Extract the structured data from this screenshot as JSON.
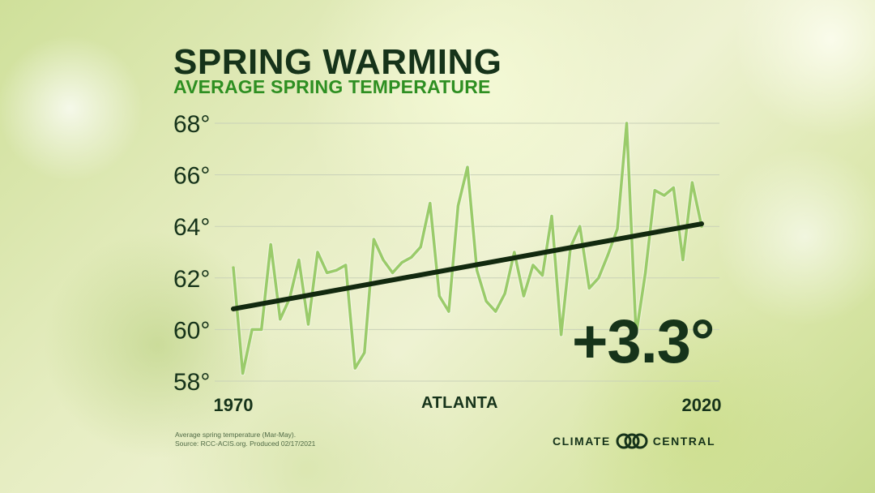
{
  "header": {
    "title": "SPRING WARMING",
    "subtitle": "AVERAGE SPRING TEMPERATURE"
  },
  "city": "ATLANTA",
  "annotation": "+3.3°",
  "footnote": {
    "line1": "Average spring temperature (Mar-May).",
    "line2": "Source: RCC-ACIS.org. Produced 02/17/2021"
  },
  "logo": {
    "left_text": "CLIMATE",
    "right_text": "CENTRAL",
    "icon": "climate-central-rings-icon"
  },
  "colors": {
    "title": "#16331a",
    "subtitle": "#2e8f22",
    "series": "#9acb6a",
    "trend": "#12290f",
    "grid": "#c9d1b8"
  },
  "chart_data": {
    "type": "line",
    "title": "SPRING WARMING",
    "subtitle": "AVERAGE SPRING TEMPERATURE",
    "xlabel": "",
    "ylabel": "",
    "ylim": [
      58,
      68
    ],
    "xlim": [
      1970,
      2020
    ],
    "yticks": [
      58,
      60,
      62,
      64,
      66,
      68
    ],
    "ytick_labels": [
      "58°",
      "60°",
      "62°",
      "64°",
      "66°",
      "68°"
    ],
    "xtick_labels": [
      "1970",
      "2020"
    ],
    "grid": true,
    "x": [
      1970,
      1971,
      1972,
      1973,
      1974,
      1975,
      1976,
      1977,
      1978,
      1979,
      1980,
      1981,
      1982,
      1983,
      1984,
      1985,
      1986,
      1987,
      1988,
      1989,
      1990,
      1991,
      1992,
      1993,
      1994,
      1995,
      1996,
      1997,
      1998,
      1999,
      2000,
      2001,
      2002,
      2003,
      2004,
      2005,
      2006,
      2007,
      2008,
      2009,
      2010,
      2011,
      2012,
      2013,
      2014,
      2015,
      2016,
      2017,
      2018,
      2019,
      2020
    ],
    "series": [
      {
        "values": [
          62.4,
          58.3,
          60.0,
          60.0,
          63.3,
          60.4,
          61.2,
          62.7,
          60.2,
          63.0,
          62.2,
          62.3,
          62.5,
          58.5,
          59.1,
          63.5,
          62.7,
          62.2,
          62.6,
          62.8,
          63.2,
          64.9,
          61.3,
          60.7,
          64.8,
          66.3,
          62.3,
          61.1,
          60.7,
          61.4,
          63.0,
          61.3,
          62.5,
          62.1,
          64.4,
          59.8,
          63.2,
          64.0,
          61.6,
          62.0,
          62.9,
          63.9,
          68.0,
          59.8,
          62.2,
          65.4,
          65.2,
          65.5,
          62.7,
          65.7,
          64.0
        ]
      }
    ],
    "trend": {
      "x": [
        1970,
        2020
      ],
      "y": [
        60.8,
        64.1
      ]
    },
    "annotation": "+3.3°"
  }
}
